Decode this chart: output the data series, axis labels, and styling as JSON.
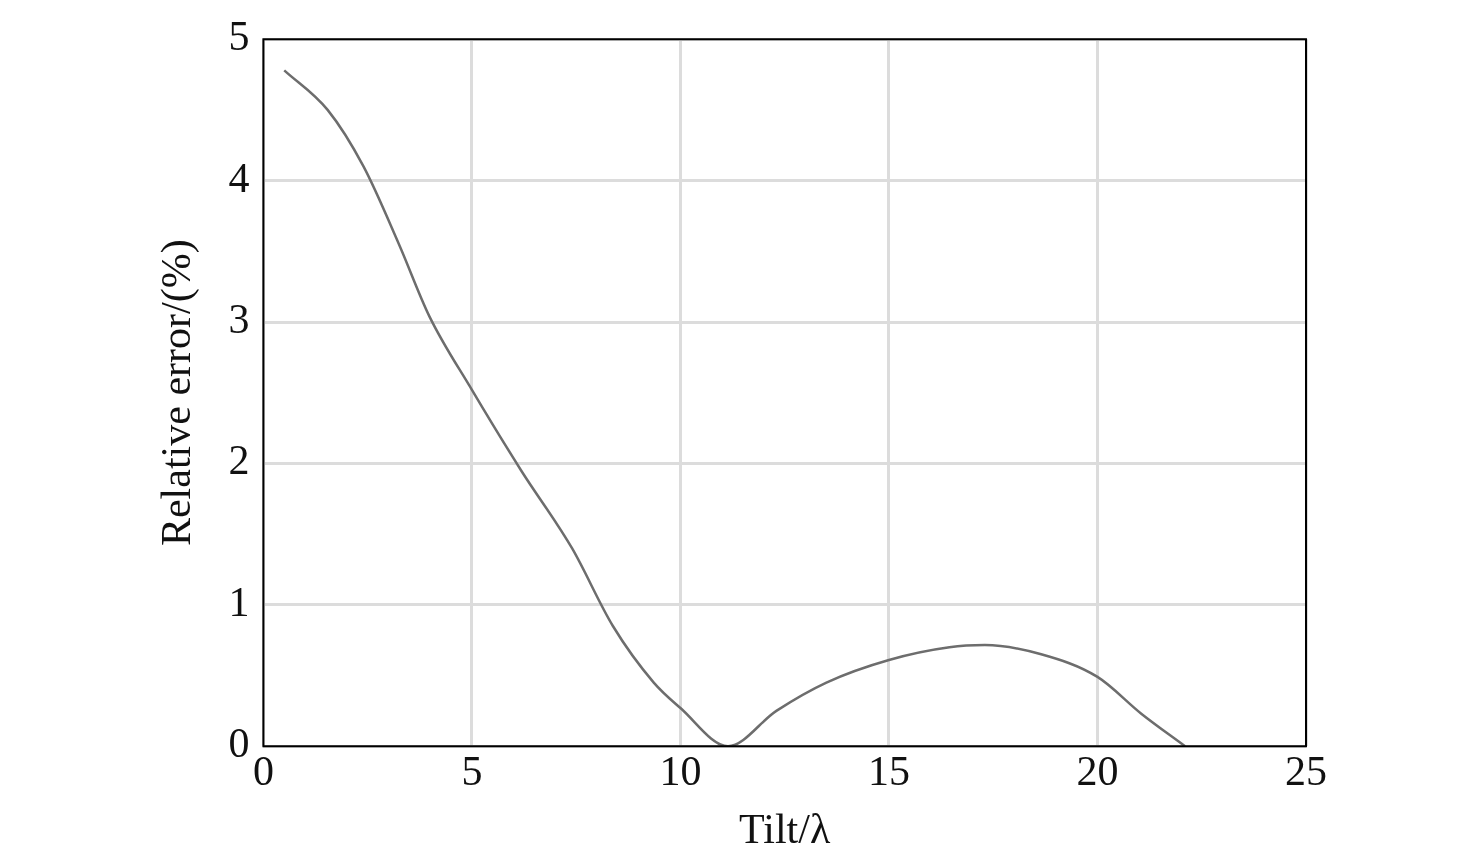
{
  "chart_data": {
    "type": "line",
    "xlabel": "Tilt/λ",
    "ylabel": "Relative error/(%)",
    "x": [
      0.5,
      1.54,
      2.4,
      3.25,
      3.98,
      5.0,
      6.18,
      7.4,
      8.38,
      9.36,
      10.0,
      11.14,
      12.3,
      13.5,
      15.0,
      16.45,
      17.3,
      18.65,
      20.0,
      21.05,
      22.1
    ],
    "series": [
      {
        "color": "#6d6d6d",
        "values": [
          4.78,
          4.5,
          4.1,
          3.55,
          3.04,
          2.52,
          1.95,
          1.4,
          0.85,
          0.45,
          0.27,
          0,
          0.25,
          0.45,
          0.61,
          0.7,
          0.715,
          0.65,
          0.49,
          0.23,
          0
        ]
      }
    ],
    "xlim": [
      0,
      25
    ],
    "xticks": [
      0,
      5,
      10,
      15,
      20,
      25
    ],
    "ylim": [
      0,
      5
    ],
    "yticks": [
      0,
      1,
      2,
      3,
      4,
      5
    ],
    "grid": true,
    "legend": false,
    "marker": "none",
    "line_style": "solid"
  }
}
